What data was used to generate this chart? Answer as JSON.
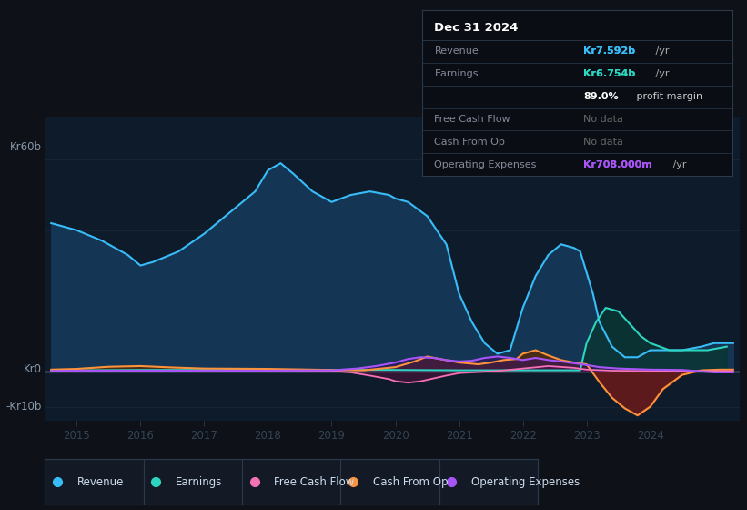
{
  "bg_color": "#0e1117",
  "chart_bg": "#0d1b2a",
  "legend_bg": "#131a26",
  "ylim": [
    -14,
    72
  ],
  "xlim": [
    2014.5,
    2025.4
  ],
  "xticks": [
    2015,
    2016,
    2017,
    2018,
    2019,
    2020,
    2021,
    2022,
    2023,
    2024
  ],
  "revenue_x": [
    2014.6,
    2015.0,
    2015.4,
    2015.8,
    2016.0,
    2016.2,
    2016.6,
    2017.0,
    2017.4,
    2017.8,
    2018.0,
    2018.2,
    2018.4,
    2018.7,
    2019.0,
    2019.3,
    2019.6,
    2019.9,
    2020.0,
    2020.2,
    2020.5,
    2020.8,
    2021.0,
    2021.2,
    2021.4,
    2021.6,
    2021.8,
    2022.0,
    2022.2,
    2022.4,
    2022.6,
    2022.8,
    2022.9,
    2023.0,
    2023.1,
    2023.2,
    2023.4,
    2023.6,
    2023.8,
    2024.0,
    2024.2,
    2024.5,
    2024.8,
    2025.0,
    2025.3
  ],
  "revenue_y": [
    42,
    40,
    37,
    33,
    30,
    31,
    34,
    39,
    45,
    51,
    57,
    59,
    56,
    51,
    48,
    50,
    51,
    50,
    49,
    48,
    44,
    36,
    22,
    14,
    8,
    5,
    6,
    18,
    27,
    33,
    36,
    35,
    34,
    28,
    22,
    14,
    7,
    4,
    4,
    6,
    6,
    6,
    7,
    8,
    8
  ],
  "earnings_x": [
    2014.6,
    2015.0,
    2016.0,
    2017.0,
    2018.0,
    2019.0,
    2020.0,
    2021.0,
    2021.5,
    2021.8,
    2022.0,
    2022.3,
    2022.6,
    2022.9,
    2023.0,
    2023.15,
    2023.3,
    2023.5,
    2023.7,
    2023.85,
    2024.0,
    2024.3,
    2024.6,
    2024.9,
    2025.2
  ],
  "earnings_y": [
    0.3,
    0.3,
    0.4,
    0.4,
    0.4,
    0.4,
    0.4,
    0.3,
    0.3,
    0.3,
    0.3,
    0.3,
    0.3,
    0.3,
    8,
    14,
    18,
    17,
    13,
    10,
    8,
    6,
    6,
    6,
    7
  ],
  "cash_op_x": [
    2014.6,
    2015.0,
    2015.5,
    2016.0,
    2016.5,
    2017.0,
    2018.0,
    2019.0,
    2019.5,
    2020.0,
    2020.3,
    2020.5,
    2020.7,
    2021.0,
    2021.3,
    2021.5,
    2021.7,
    2021.9,
    2022.0,
    2022.2,
    2022.4,
    2022.6,
    2022.8,
    2023.0,
    2023.2,
    2023.4,
    2023.6,
    2023.8,
    2024.0,
    2024.2,
    2024.5,
    2024.8,
    2025.1,
    2025.3
  ],
  "cash_op_y": [
    0.5,
    0.7,
    1.3,
    1.5,
    1.1,
    0.8,
    0.7,
    0.4,
    0.3,
    1.2,
    2.8,
    4.2,
    3.5,
    2.5,
    2.0,
    2.5,
    3.2,
    3.5,
    5.0,
    6.0,
    4.5,
    3.2,
    2.5,
    2.0,
    -3.0,
    -7.5,
    -10.5,
    -12.5,
    -10.0,
    -5.0,
    -1.0,
    0.3,
    0.5,
    0.5
  ],
  "free_cf_x": [
    2014.6,
    2015.0,
    2016.0,
    2017.0,
    2018.0,
    2019.0,
    2019.3,
    2019.6,
    2019.9,
    2020.0,
    2020.2,
    2020.4,
    2020.6,
    2020.8,
    2021.0,
    2021.3,
    2021.6,
    2022.0,
    2022.4,
    2022.8,
    2023.0,
    2023.4,
    2024.0,
    2024.5,
    2025.0,
    2025.3
  ],
  "free_cf_y": [
    0.1,
    0.1,
    0.1,
    0.1,
    0.1,
    0.1,
    -0.3,
    -1.2,
    -2.2,
    -2.8,
    -3.2,
    -2.8,
    -2.0,
    -1.2,
    -0.5,
    -0.2,
    0.1,
    0.8,
    1.5,
    1.0,
    0.5,
    0.2,
    0.1,
    0.1,
    0.1,
    0.1
  ],
  "op_exp_x": [
    2014.6,
    2015.0,
    2016.0,
    2017.0,
    2018.0,
    2019.0,
    2019.4,
    2019.7,
    2020.0,
    2020.2,
    2020.4,
    2020.6,
    2020.8,
    2021.0,
    2021.2,
    2021.4,
    2021.6,
    2021.8,
    2022.0,
    2022.2,
    2022.4,
    2022.6,
    2022.8,
    2023.0,
    2023.2,
    2023.5,
    2024.0,
    2024.5,
    2025.0,
    2025.3
  ],
  "op_exp_y": [
    0.1,
    0.2,
    0.2,
    0.2,
    0.2,
    0.3,
    0.8,
    1.5,
    2.5,
    3.5,
    4.0,
    3.8,
    3.2,
    2.8,
    3.0,
    3.8,
    4.2,
    3.8,
    3.2,
    3.8,
    3.2,
    2.8,
    2.3,
    1.8,
    1.2,
    0.8,
    0.5,
    0.4,
    -0.3,
    -0.3
  ],
  "legend": [
    {
      "label": "Revenue",
      "color": "#38bdf8"
    },
    {
      "label": "Earnings",
      "color": "#2dd4bf"
    },
    {
      "label": "Free Cash Flow",
      "color": "#f472b6"
    },
    {
      "label": "Cash From Op",
      "color": "#fb923c"
    },
    {
      "label": "Operating Expenses",
      "color": "#a855f7"
    }
  ],
  "info_date": "Dec 31 2024",
  "info_rows": [
    {
      "label": "Revenue",
      "value": "Kr7.592b",
      "suffix": " /yr",
      "val_color": "#38bdf8",
      "nodata": false
    },
    {
      "label": "Earnings",
      "value": "Kr6.754b",
      "suffix": " /yr",
      "val_color": "#2dd4bf",
      "nodata": false
    },
    {
      "label": "",
      "value": "89.0%",
      "suffix": " profit margin",
      "val_color": "#ffffff",
      "nodata": false,
      "bold_val": true
    },
    {
      "label": "Free Cash Flow",
      "value": "No data",
      "suffix": "",
      "val_color": "#666666",
      "nodata": true
    },
    {
      "label": "Cash From Op",
      "value": "No data",
      "suffix": "",
      "val_color": "#666666",
      "nodata": true
    },
    {
      "label": "Operating Expenses",
      "value": "Kr708.000m",
      "suffix": " /yr",
      "val_color": "#a855f7",
      "nodata": false
    }
  ]
}
